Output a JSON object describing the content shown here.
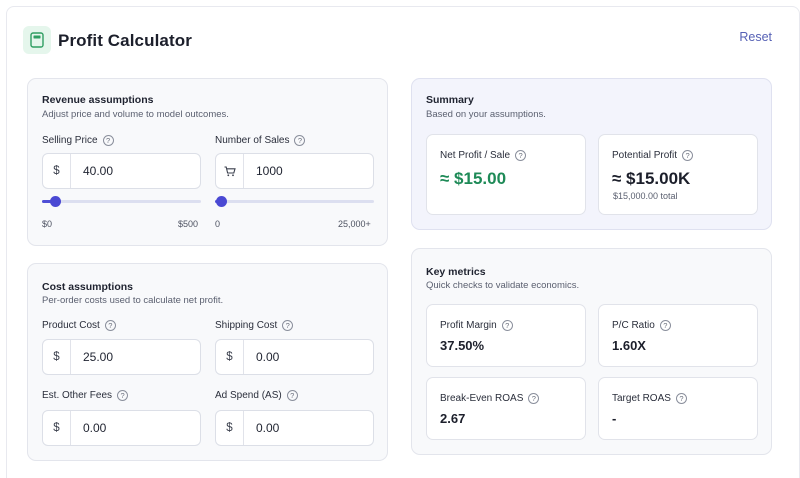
{
  "header": {
    "title": "Profit Calculator",
    "reset_label": "Reset",
    "icon": "calculator-icon"
  },
  "revenue": {
    "title": "Revenue assumptions",
    "subtitle": "Adjust price and volume to model outcomes.",
    "selling_price": {
      "label": "Selling Price",
      "prefix": "$",
      "value": "40.00",
      "slider_min": "$0",
      "slider_max": "$500",
      "slider_fraction": 0.08
    },
    "number_of_sales": {
      "label": "Number of Sales",
      "prefix_icon": "cart-icon",
      "value": "1000",
      "slider_min": "0",
      "slider_max": "25,000+",
      "slider_fraction": 0.04
    }
  },
  "cost": {
    "title": "Cost assumptions",
    "subtitle": "Per-order costs used to calculate net profit.",
    "product_cost": {
      "label": "Product Cost",
      "prefix": "$",
      "value": "25.00"
    },
    "shipping_cost": {
      "label": "Shipping Cost",
      "prefix": "$",
      "value": "0.00"
    },
    "other_fees": {
      "label": "Est. Other Fees",
      "prefix": "$",
      "value": "0.00"
    },
    "ad_spend": {
      "label": "Ad Spend (AS)",
      "prefix": "$",
      "value": "0.00"
    }
  },
  "summary": {
    "title": "Summary",
    "subtitle": "Based on your assumptions.",
    "net_profit": {
      "label": "Net Profit / Sale",
      "value": "≈ $15.00",
      "color": "#1e8a57"
    },
    "potential_profit": {
      "label": "Potential Profit",
      "value": "≈ $15.00K",
      "sub": "$15,000.00 total"
    }
  },
  "metrics": {
    "title": "Key metrics",
    "subtitle": "Quick checks to validate economics.",
    "profit_margin": {
      "label": "Profit Margin",
      "value": "37.50%"
    },
    "pc_ratio": {
      "label": "P/C Ratio",
      "value": "1.60X"
    },
    "break_even_roas": {
      "label": "Break-Even ROAS",
      "value": "2.67"
    },
    "target_roas": {
      "label": "Target ROAS",
      "value": "-"
    }
  },
  "colors": {
    "accent": "#4f4fd6",
    "profit_green": "#1e8a57",
    "reset_link": "#5661b5"
  }
}
